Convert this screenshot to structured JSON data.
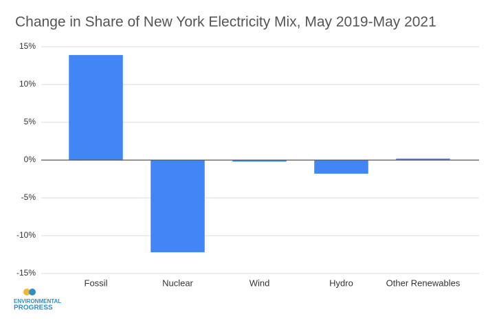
{
  "chart_data": {
    "type": "bar",
    "title": "Change in Share of New York Electricity Mix, May 2019-May 2021",
    "categories": [
      "Fossil",
      "Nuclear",
      "Wind",
      "Hydro",
      "Other Renewables"
    ],
    "values": [
      13.9,
      -12.2,
      -0.2,
      -1.8,
      0.2
    ],
    "color": "#4285f4",
    "ylim": [
      -15,
      15
    ],
    "yticks": [
      {
        "value": -15,
        "label": "-15%"
      },
      {
        "value": -10,
        "label": "-10%"
      },
      {
        "value": -5,
        "label": "-5%"
      },
      {
        "value": 0,
        "label": "0%"
      },
      {
        "value": 5,
        "label": "5%"
      },
      {
        "value": 10,
        "label": "10%"
      },
      {
        "value": 15,
        "label": "15%"
      }
    ],
    "grid": true,
    "logo_text": [
      "ENVIRONMENTAL",
      "PROGRESS"
    ]
  }
}
